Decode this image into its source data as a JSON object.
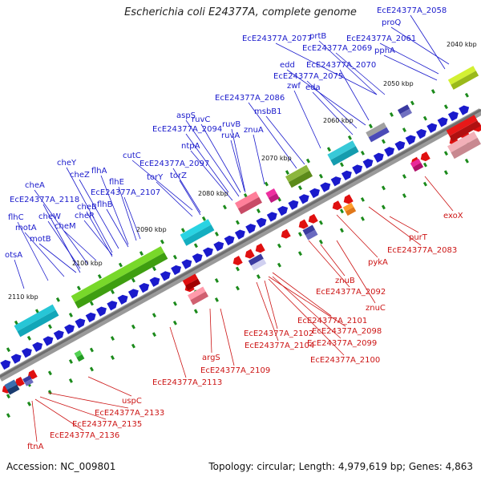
{
  "title": "Escherichia coli E24377A, complete genome",
  "footer": {
    "accession": "Accession: NC_009801",
    "summary": "Topology: circular; Length: 4,979,619 bp; Genes: 4,863"
  },
  "colors": {
    "forward_gene": "#1a1acc",
    "reverse_gene": "#e01010",
    "backbone": "#7a7a7a",
    "tick_mark": "#1b8a1b",
    "label_forward": "#1a1acc",
    "label_reverse": "#cc1414"
  },
  "ticks": [
    "2040 kbp",
    "2050 kbp",
    "2060 kbp",
    "2070 kbp",
    "2080 kbp",
    "2090 kbp",
    "2100 kbp",
    "2110 kbp"
  ],
  "labels_forward": [
    "EcE24377A_2058",
    "proQ",
    "EcE24377A_2061",
    "pphA",
    "EcE24377A_2077",
    "prtB",
    "EcE24377A_2069",
    "edd",
    "EcE24377A_2070",
    "EcE24377A_2075",
    "eda",
    "msbB1",
    "zwf",
    "EcE24377A_2086",
    "aspS",
    "ruvC",
    "EcE24377A_2094",
    "ruvB",
    "ruvA",
    "znuA",
    "ntpA",
    "cutC",
    "EcE24377A_2097",
    "torY",
    "torZ",
    "cheY",
    "cheZ",
    "flhA",
    "flhE",
    "cheA",
    "EcE24377A_2107",
    "EcE24377A_2118",
    "cheB",
    "flhB",
    "flhC",
    "cheW",
    "cheR",
    "motA",
    "cheM",
    "motB",
    "otsA"
  ],
  "labels_reverse": [
    "exoX",
    "purT",
    "EcE24377A_2083",
    "pykA",
    "znuB",
    "EcE24377A_2092",
    "znuC",
    "EcE24377A_2101",
    "EcE24377A_2098",
    "EcE24377A_2102",
    "EcE24377A_2104",
    "EcE24377A_2099",
    "EcE24377A_2100",
    "argS",
    "EcE24377A_2109",
    "EcE24377A_2113",
    "uspC",
    "EcE24377A_2133",
    "EcE24377A_2135",
    "EcE24377A_2136",
    "ftnA"
  ]
}
